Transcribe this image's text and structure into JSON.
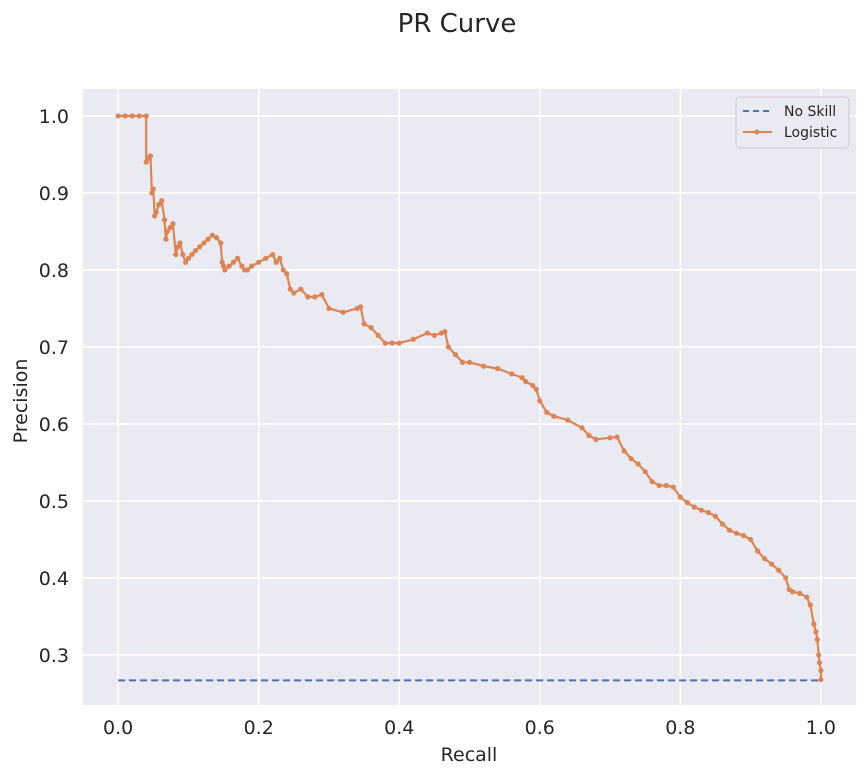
{
  "chart_data": {
    "type": "line",
    "title": "PR Curve",
    "xlabel": "Recall",
    "ylabel": "Precision",
    "xlim": [
      -0.05,
      1.05
    ],
    "ylim": [
      0.235,
      1.035
    ],
    "x_ticks": [
      0.0,
      0.2,
      0.4,
      0.6,
      0.8,
      1.0
    ],
    "y_ticks": [
      0.3,
      0.4,
      0.5,
      0.6,
      0.7,
      0.8,
      0.9,
      1.0
    ],
    "grid": true,
    "legend_position": "top-right",
    "background": "#eaeaf2",
    "series": [
      {
        "name": "No Skill",
        "color": "#4c72b0",
        "style": "dashed",
        "marker": "none",
        "x": [
          0.0,
          1.0
        ],
        "y": [
          0.267,
          0.267
        ]
      },
      {
        "name": "Logistic",
        "color": "#dd8452",
        "style": "solid",
        "marker": "dot",
        "x": [
          0.0,
          0.01,
          0.02,
          0.03,
          0.04,
          0.04,
          0.043,
          0.046,
          0.048,
          0.05,
          0.052,
          0.054,
          0.058,
          0.062,
          0.066,
          0.068,
          0.07,
          0.074,
          0.078,
          0.082,
          0.085,
          0.088,
          0.092,
          0.096,
          0.1,
          0.105,
          0.11,
          0.116,
          0.122,
          0.128,
          0.134,
          0.14,
          0.146,
          0.148,
          0.15,
          0.152,
          0.158,
          0.164,
          0.17,
          0.176,
          0.18,
          0.184,
          0.19,
          0.2,
          0.21,
          0.22,
          0.225,
          0.23,
          0.235,
          0.24,
          0.245,
          0.25,
          0.26,
          0.27,
          0.28,
          0.29,
          0.3,
          0.32,
          0.34,
          0.345,
          0.35,
          0.36,
          0.37,
          0.38,
          0.39,
          0.4,
          0.42,
          0.44,
          0.45,
          0.46,
          0.465,
          0.47,
          0.48,
          0.49,
          0.5,
          0.52,
          0.54,
          0.56,
          0.575,
          0.58,
          0.59,
          0.595,
          0.6,
          0.61,
          0.62,
          0.64,
          0.66,
          0.67,
          0.68,
          0.7,
          0.71,
          0.72,
          0.73,
          0.74,
          0.75,
          0.76,
          0.77,
          0.78,
          0.79,
          0.8,
          0.81,
          0.82,
          0.83,
          0.84,
          0.85,
          0.86,
          0.87,
          0.88,
          0.89,
          0.9,
          0.91,
          0.92,
          0.93,
          0.94,
          0.95,
          0.955,
          0.96,
          0.97,
          0.98,
          0.985,
          0.99,
          0.993,
          0.995,
          0.997,
          0.998,
          1.0,
          1.0
        ],
        "y": [
          1.0,
          1.0,
          1.0,
          1.0,
          1.0,
          0.94,
          0.945,
          0.948,
          0.9,
          0.905,
          0.87,
          0.875,
          0.885,
          0.89,
          0.865,
          0.84,
          0.85,
          0.855,
          0.86,
          0.82,
          0.83,
          0.835,
          0.82,
          0.81,
          0.815,
          0.82,
          0.825,
          0.83,
          0.835,
          0.84,
          0.845,
          0.842,
          0.835,
          0.81,
          0.805,
          0.8,
          0.805,
          0.81,
          0.815,
          0.805,
          0.8,
          0.8,
          0.805,
          0.81,
          0.815,
          0.82,
          0.81,
          0.815,
          0.8,
          0.795,
          0.775,
          0.77,
          0.775,
          0.765,
          0.765,
          0.768,
          0.75,
          0.745,
          0.75,
          0.752,
          0.73,
          0.725,
          0.715,
          0.705,
          0.705,
          0.705,
          0.71,
          0.718,
          0.715,
          0.718,
          0.72,
          0.7,
          0.69,
          0.68,
          0.68,
          0.675,
          0.672,
          0.665,
          0.66,
          0.655,
          0.65,
          0.645,
          0.63,
          0.615,
          0.61,
          0.605,
          0.595,
          0.585,
          0.58,
          0.582,
          0.583,
          0.565,
          0.555,
          0.548,
          0.538,
          0.525,
          0.52,
          0.52,
          0.518,
          0.505,
          0.498,
          0.492,
          0.488,
          0.485,
          0.48,
          0.47,
          0.462,
          0.458,
          0.455,
          0.45,
          0.435,
          0.425,
          0.418,
          0.41,
          0.4,
          0.385,
          0.382,
          0.38,
          0.375,
          0.365,
          0.34,
          0.33,
          0.32,
          0.3,
          0.29,
          0.28,
          0.268
        ]
      }
    ]
  }
}
